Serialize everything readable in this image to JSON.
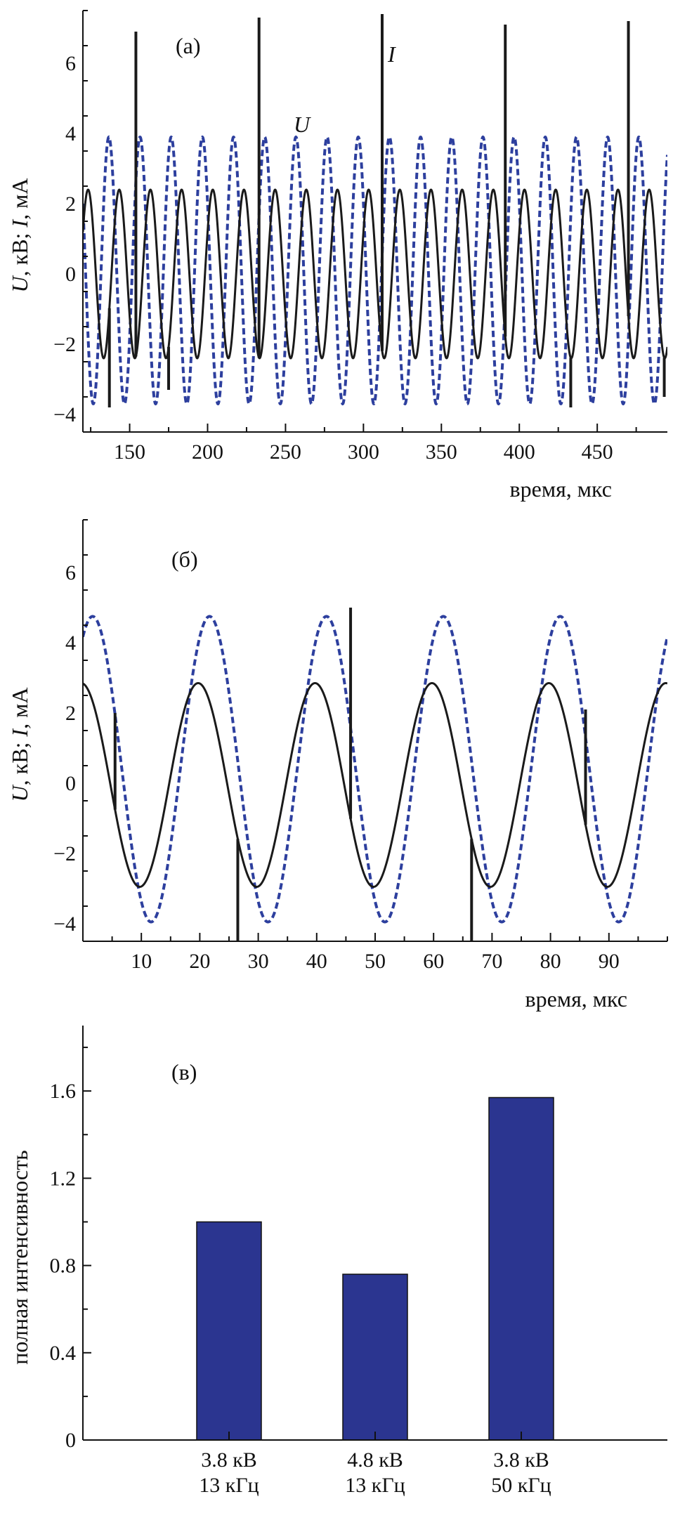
{
  "chart_data": [
    {
      "type": "line",
      "panel_label": "(а)",
      "xlabel": "время, мкс",
      "ylabel": "U, кВ; I, мА",
      "ylabel_parts": [
        "U",
        ", кВ; ",
        "I",
        ", мА"
      ],
      "xlim": [
        120,
        495
      ],
      "ylim": [
        -4.5,
        7.5
      ],
      "xticks": [
        150,
        200,
        250,
        300,
        350,
        400,
        450
      ],
      "yticks": [
        -4,
        -2,
        0,
        2,
        4,
        6
      ],
      "series": [
        {
          "name": "U",
          "label": "U",
          "style": "dashed",
          "color": "#2d3f9e",
          "waveform": {
            "amplitude": 3.8,
            "offset": 0.1,
            "period_us": 20,
            "phase_deg": 150
          }
        },
        {
          "name": "I",
          "label": "I",
          "style": "solid",
          "color": "#1a1a1a",
          "waveform": {
            "amplitude": 2.4,
            "offset": 0.0,
            "period_us": 20,
            "phase_deg": 30
          },
          "spikes": [
            {
              "t": 154,
              "value": 6.9
            },
            {
              "t": 233,
              "value": 7.3
            },
            {
              "t": 312,
              "value": 7.4
            },
            {
              "t": 391,
              "value": 7.1
            },
            {
              "t": 470,
              "value": 7.2
            },
            {
              "t": 137,
              "value": -3.8
            },
            {
              "t": 175,
              "value": -3.3
            },
            {
              "t": 433,
              "value": -3.8
            },
            {
              "t": 493,
              "value": -3.5
            }
          ]
        }
      ]
    },
    {
      "type": "line",
      "panel_label": "(б)",
      "xlabel": "время, мкс",
      "ylabel": "U, кВ; I, мА",
      "ylabel_parts": [
        "U",
        ", кВ; ",
        "I",
        ", мА"
      ],
      "xlim": [
        0,
        100
      ],
      "ylim": [
        -4.5,
        7.5
      ],
      "xticks": [
        10,
        20,
        30,
        40,
        50,
        60,
        70,
        80,
        90
      ],
      "yticks": [
        -4,
        -2,
        0,
        2,
        4,
        6
      ],
      "series": [
        {
          "name": "U",
          "style": "dashed",
          "color": "#2d3f9e",
          "waveform": {
            "amplitude": 4.35,
            "offset": 0.4,
            "period_us": 20,
            "phase_deg": 60
          }
        },
        {
          "name": "I",
          "style": "solid",
          "color": "#1a1a1a",
          "waveform": {
            "amplitude": 2.9,
            "offset": -0.05,
            "period_us": 20,
            "phase_deg": 95
          },
          "spikes": [
            {
              "t": 5.5,
              "value": 2.0
            },
            {
              "t": 26.5,
              "value": -4.5
            },
            {
              "t": 45.8,
              "value": 5.0
            },
            {
              "t": 66.5,
              "value": -4.5
            },
            {
              "t": 86.0,
              "value": 2.1
            }
          ]
        }
      ]
    },
    {
      "type": "bar",
      "panel_label": "(в)",
      "xlabel": "",
      "ylabel": "полная интенсивность",
      "categories": [
        [
          "3.8 кВ",
          "13 кГц"
        ],
        [
          "4.8 кВ",
          "13 кГц"
        ],
        [
          "3.8 кВ",
          "50 кГц"
        ]
      ],
      "values": [
        1.0,
        0.76,
        1.57
      ],
      "ylim": [
        0,
        1.9
      ],
      "yticks": [
        "0",
        "0.4",
        "0.8",
        "1.2",
        "1.6"
      ],
      "bar_color": "#2b3590"
    }
  ]
}
